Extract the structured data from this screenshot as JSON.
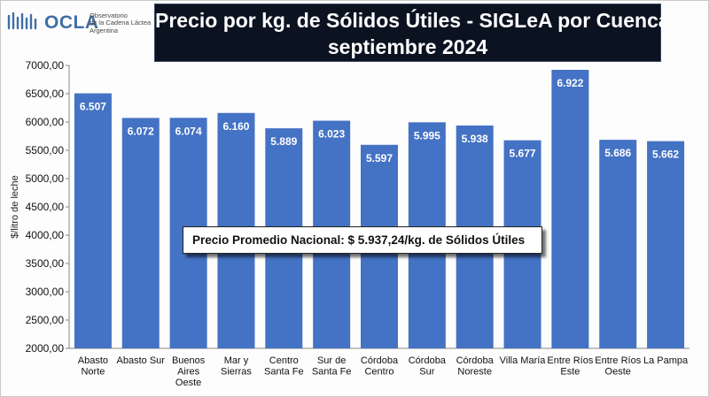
{
  "logo": {
    "name": "OCLA",
    "subtitle_lines": [
      "Observatorio",
      "de la Cadena Láctea",
      "Argentina"
    ]
  },
  "title_lines": [
    "Precio por kg. de Sólidos Útiles - SIGLeA por Cuenca:",
    "septiembre 2024"
  ],
  "average_note": "Precio Promedio Nacional: $ 5.937,24/kg. de Sólidos Útiles",
  "colors": {
    "bar": "#4472c4",
    "title_bg": "#0b1220",
    "bar_label": "#ffffff"
  },
  "chart_data": {
    "type": "bar",
    "title": "Precio por kg. de Sólidos Útiles - SIGLeA por Cuenca: septiembre 2024",
    "xlabel": "",
    "ylabel": "$/litro de leche",
    "ylim": [
      2000,
      7000
    ],
    "yticks": [
      2000,
      2500,
      3000,
      3500,
      4000,
      4500,
      5000,
      5500,
      6000,
      6500,
      7000
    ],
    "ytick_labels": [
      "2000,00",
      "2500,00",
      "3000,00",
      "3500,00",
      "4000,00",
      "4500,00",
      "5000,00",
      "5500,00",
      "6000,00",
      "6500,00",
      "7000,00"
    ],
    "grid": false,
    "categories": [
      [
        "Abasto",
        "Norte"
      ],
      [
        "Abasto Sur"
      ],
      [
        "Buenos",
        "Aires",
        "Oeste"
      ],
      [
        "Mar y",
        "Sierras"
      ],
      [
        "Centro",
        "Santa Fe"
      ],
      [
        "Sur de",
        "Santa Fe"
      ],
      [
        "Córdoba",
        "Centro"
      ],
      [
        "Córdoba",
        "Sur"
      ],
      [
        "Córdoba",
        "Noreste"
      ],
      [
        "Villa María"
      ],
      [
        "Entre Ríos",
        "Este"
      ],
      [
        "Entre Ríos",
        "Oeste"
      ],
      [
        "La Pampa"
      ]
    ],
    "values": [
      6507,
      6072,
      6074,
      6160,
      5889,
      6023,
      5597,
      5995,
      5938,
      5677,
      6922,
      5686,
      5662
    ],
    "data_labels": [
      "6.507",
      "6.072",
      "6.074",
      "6.160",
      "5.889",
      "6.023",
      "5.597",
      "5.995",
      "5.938",
      "5.677",
      "6.922",
      "5.686",
      "5.662"
    ]
  }
}
